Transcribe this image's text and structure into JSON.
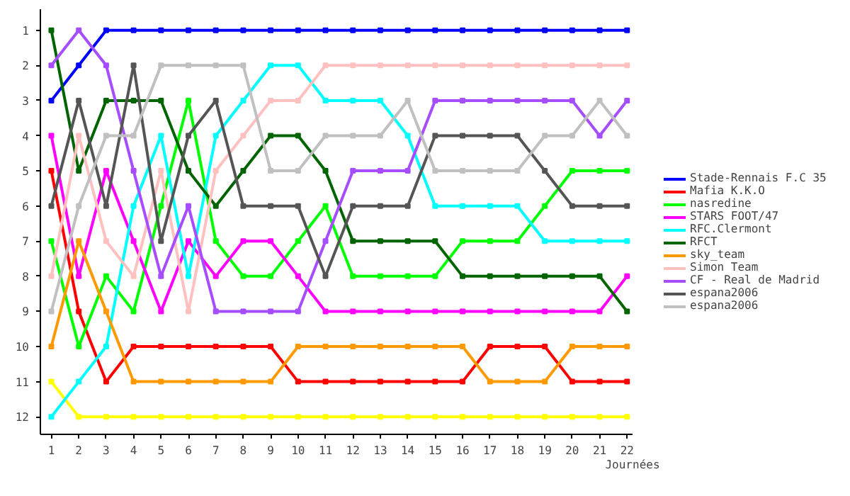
{
  "chart_data": {
    "type": "line",
    "xlabel": "Journées",
    "x": [
      1,
      2,
      3,
      4,
      5,
      6,
      7,
      8,
      9,
      10,
      11,
      12,
      13,
      14,
      15,
      16,
      17,
      18,
      19,
      20,
      21,
      22
    ],
    "xlim": [
      0.6,
      22.2
    ],
    "xticks": [
      1,
      2,
      3,
      4,
      5,
      6,
      7,
      8,
      9,
      10,
      11,
      12,
      13,
      14,
      15,
      16,
      17,
      18,
      19,
      20,
      21,
      22
    ],
    "ylim": [
      12.5,
      0.4
    ],
    "yticks": [
      1,
      2,
      3,
      4,
      5,
      6,
      7,
      8,
      9,
      10,
      11,
      12
    ],
    "grid": false,
    "legend": "right",
    "marker": "square",
    "line_style": "solid",
    "series": [
      {
        "name": "Stade-Rennais F.C 35",
        "color": "#0000ff",
        "values": [
          3,
          2,
          1,
          1,
          1,
          1,
          1,
          1,
          1,
          1,
          1,
          1,
          1,
          1,
          1,
          1,
          1,
          1,
          1,
          1,
          1,
          1
        ]
      },
      {
        "name": "Mafia K.K.O",
        "color": "#ff0000",
        "values": [
          5,
          9,
          11,
          10,
          10,
          10,
          10,
          10,
          10,
          11,
          11,
          11,
          11,
          11,
          11,
          11,
          10,
          10,
          10,
          11,
          11,
          11
        ]
      },
      {
        "color": "#ffff00",
        "values": [
          11,
          12,
          12,
          12,
          12,
          12,
          12,
          12,
          12,
          12,
          12,
          12,
          12,
          12,
          12,
          12,
          12,
          12,
          12,
          12,
          12,
          12
        ]
      },
      {
        "name": "nasredine",
        "color": "#00ff00",
        "values": [
          7,
          10,
          8,
          9,
          6,
          3,
          7,
          8,
          8,
          7,
          6,
          8,
          8,
          8,
          8,
          7,
          7,
          7,
          6,
          5,
          5,
          5
        ]
      },
      {
        "name": "STARS FOOT/47",
        "color": "#ff00ff",
        "values": [
          4,
          8,
          5,
          7,
          9,
          7,
          8,
          7,
          7,
          8,
          9,
          9,
          9,
          9,
          9,
          9,
          9,
          9,
          9,
          9,
          9,
          8
        ]
      },
      {
        "name": "RFC.Clermont",
        "color": "#00ffff",
        "values": [
          12,
          11,
          10,
          6,
          4,
          8,
          4,
          3,
          2,
          2,
          3,
          3,
          3,
          4,
          6,
          6,
          6,
          6,
          7,
          7,
          7,
          7
        ]
      },
      {
        "name": "RFCT",
        "color": "#006400",
        "values": [
          1,
          5,
          3,
          3,
          3,
          5,
          6,
          5,
          4,
          4,
          5,
          7,
          7,
          7,
          7,
          8,
          8,
          8,
          8,
          8,
          8,
          9
        ]
      },
      {
        "name": "sky_team",
        "color": "#ff9900",
        "values": [
          10,
          7,
          9,
          11,
          11,
          11,
          11,
          11,
          11,
          10,
          10,
          10,
          10,
          10,
          10,
          10,
          11,
          11,
          11,
          10,
          10,
          10
        ]
      },
      {
        "name": "Simon Team",
        "color": "#ffc0c0",
        "values": [
          8,
          4,
          7,
          8,
          5,
          9,
          5,
          4,
          3,
          3,
          2,
          2,
          2,
          2,
          2,
          2,
          2,
          2,
          2,
          2,
          2,
          2
        ]
      },
      {
        "name": "CF - Real de Madrid",
        "color": "#a64dff",
        "values": [
          2,
          1,
          2,
          5,
          8,
          6,
          9,
          9,
          9,
          9,
          7,
          5,
          5,
          5,
          3,
          3,
          3,
          3,
          3,
          3,
          4,
          3
        ]
      },
      {
        "name": "espana2006",
        "color": "#555555",
        "values": [
          6,
          3,
          6,
          2,
          7,
          4,
          3,
          6,
          6,
          6,
          8,
          6,
          6,
          6,
          4,
          4,
          4,
          4,
          5,
          6,
          6,
          6
        ]
      },
      {
        "name": "espana2006",
        "color": "#c0c0c0",
        "values": [
          9,
          6,
          4,
          4,
          2,
          2,
          2,
          2,
          5,
          5,
          4,
          4,
          4,
          3,
          5,
          5,
          5,
          5,
          4,
          4,
          3,
          4
        ]
      }
    ]
  }
}
